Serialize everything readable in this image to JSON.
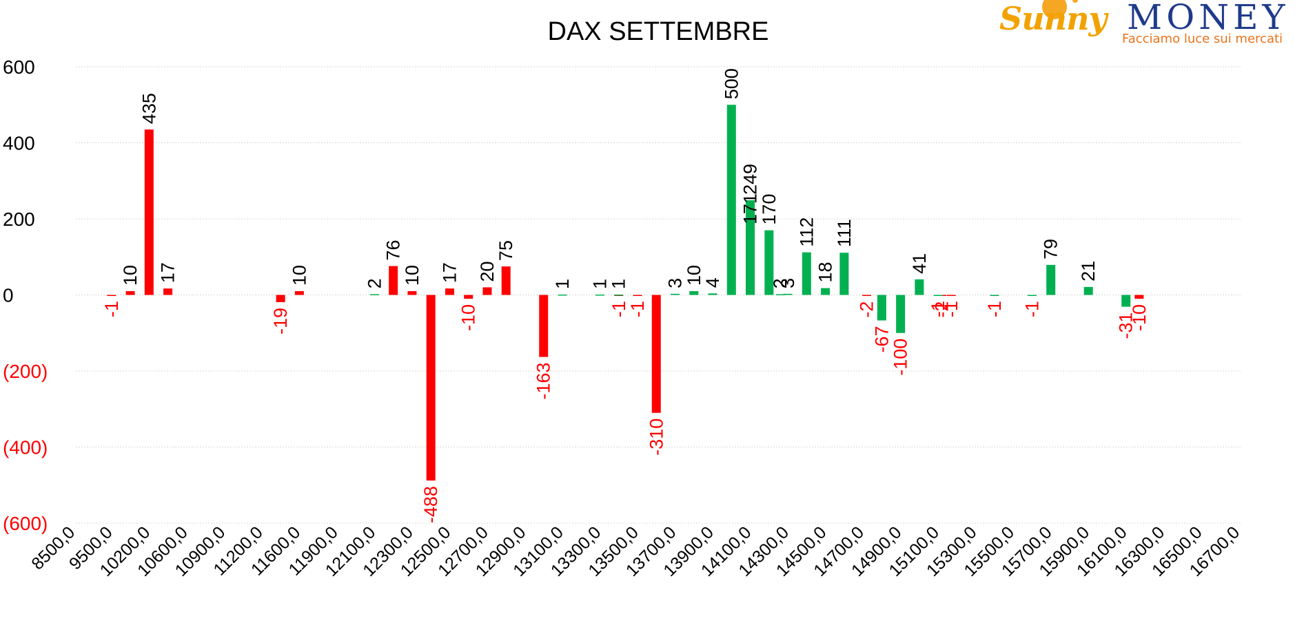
{
  "logo": {
    "brand_left": "Sunny",
    "brand_right": "MONEY",
    "tagline": "Facciamo luce sui mercati"
  },
  "chart_data": {
    "type": "bar",
    "title": "DAX SETTEMBRE",
    "xlabel": "",
    "ylabel": "",
    "ylim": [
      -600,
      600
    ],
    "y_ticks": [
      {
        "value": 600,
        "label": "600"
      },
      {
        "value": 400,
        "label": "400"
      },
      {
        "value": 200,
        "label": "200"
      },
      {
        "value": 0,
        "label": "0"
      },
      {
        "value": -200,
        "label": "(200)"
      },
      {
        "value": -400,
        "label": "(400)"
      },
      {
        "value": -600,
        "label": "(600)"
      }
    ],
    "x_tick_labels": [
      "8500,0",
      "9500,0",
      "10200,0",
      "10600,0",
      "10900,0",
      "11200,0",
      "11600,0",
      "11900,0",
      "12100,0",
      "12300,0",
      "12500,0",
      "12700,0",
      "12900,0",
      "13100,0",
      "13300,0",
      "13500,0",
      "13700,0",
      "13900,0",
      "14100,0",
      "14300,0",
      "14500,0",
      "14700,0",
      "14900,0",
      "15100,0",
      "15300,0",
      "15500,0",
      "15700,0",
      "15900,0",
      "16100,0",
      "16300,0",
      "16500,0",
      "16700,0"
    ],
    "grid": true,
    "legend": "none",
    "colors": {
      "series_1": "#ff0000",
      "series_2": "#00b050",
      "negative_tick": "#ff0000",
      "text": "#000000",
      "grid": "#d9d9d9"
    },
    "series": [
      {
        "color": "#ff0000",
        "points": [
          {
            "x": 0.95,
            "value": -1,
            "label": "-1"
          },
          {
            "x": 1.45,
            "value": 10,
            "label": "10"
          },
          {
            "x": 1.95,
            "value": 435,
            "label": "435"
          },
          {
            "x": 2.45,
            "value": 17,
            "label": "17"
          },
          {
            "x": 5.45,
            "value": -19,
            "label": "-19"
          },
          {
            "x": 5.95,
            "value": 10,
            "label": "10"
          },
          {
            "x": 8.45,
            "value": 76,
            "label": "76"
          },
          {
            "x": 8.95,
            "value": 10,
            "label": "10"
          },
          {
            "x": 9.45,
            "value": -488,
            "label": "-488"
          },
          {
            "x": 9.95,
            "value": 17,
            "label": "17"
          },
          {
            "x": 10.45,
            "value": -10,
            "label": "-10"
          },
          {
            "x": 10.95,
            "value": 20,
            "label": "20"
          },
          {
            "x": 11.45,
            "value": 75,
            "label": "75"
          },
          {
            "x": 12.45,
            "value": -163,
            "label": "-163"
          },
          {
            "x": 14.45,
            "value": -1,
            "label": "-1"
          },
          {
            "x": 14.95,
            "value": -1,
            "label": "-1"
          },
          {
            "x": 15.45,
            "value": -310,
            "label": "-310"
          },
          {
            "x": 17.95,
            "value": 171,
            "label": "171"
          },
          {
            "x": 21.05,
            "value": -2,
            "label": "-2"
          },
          {
            "x": 23.05,
            "value": -2,
            "label": "-2"
          },
          {
            "x": 23.3,
            "value": -1,
            "label": "-1"
          },
          {
            "x": 28.3,
            "value": -10,
            "label": "-10"
          }
        ]
      },
      {
        "color": "#00b050",
        "points": [
          {
            "x": 7.95,
            "value": 2,
            "label": "2"
          },
          {
            "x": 12.95,
            "value": 1,
            "label": "1"
          },
          {
            "x": 13.95,
            "value": 1,
            "label": "1"
          },
          {
            "x": 14.45,
            "value": 1,
            "label": "1"
          },
          {
            "x": 15.95,
            "value": 3,
            "label": "3"
          },
          {
            "x": 16.45,
            "value": 10,
            "label": "10"
          },
          {
            "x": 16.95,
            "value": 4,
            "label": "4"
          },
          {
            "x": 17.45,
            "value": 500,
            "label": "500"
          },
          {
            "x": 17.95,
            "value": 249,
            "label": "249"
          },
          {
            "x": 18.45,
            "value": 170,
            "label": "170"
          },
          {
            "x": 18.75,
            "value": 2,
            "label": "2"
          },
          {
            "x": 18.95,
            "value": 3,
            "label": "3"
          },
          {
            "x": 19.45,
            "value": 112,
            "label": "112"
          },
          {
            "x": 19.95,
            "value": 18,
            "label": "18"
          },
          {
            "x": 20.45,
            "value": 111,
            "label": "111"
          },
          {
            "x": 21.45,
            "value": -67,
            "label": "-67"
          },
          {
            "x": 21.95,
            "value": -100,
            "label": "-100"
          },
          {
            "x": 22.45,
            "value": 41,
            "label": "41"
          },
          {
            "x": 22.95,
            "value": -1,
            "label": "-1"
          },
          {
            "x": 24.45,
            "value": -1,
            "label": "-1"
          },
          {
            "x": 25.45,
            "value": -1,
            "label": "-1"
          },
          {
            "x": 25.95,
            "value": 79,
            "label": "79"
          },
          {
            "x": 26.95,
            "value": 21,
            "label": "21"
          },
          {
            "x": 27.95,
            "value": -31,
            "label": "-31"
          }
        ]
      }
    ]
  }
}
